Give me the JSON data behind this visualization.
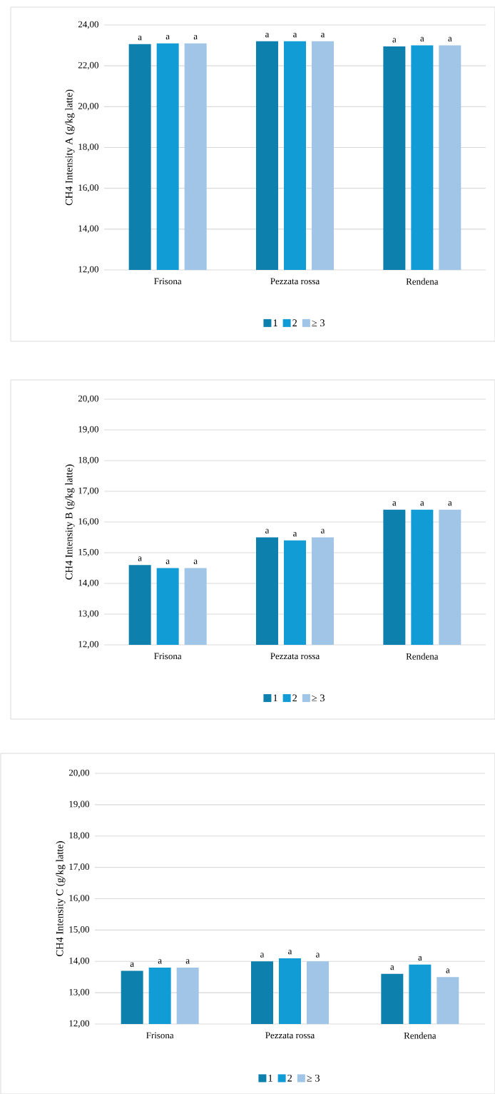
{
  "chart_data": [
    {
      "type": "bar",
      "ylabel": "CH4 Intensity A (g/kg latte)",
      "categories": [
        "Frisona",
        "Pezzata rossa",
        "Rendena"
      ],
      "series": [
        {
          "name": "1",
          "color": "#0e80ae",
          "values": [
            23.06,
            23.2,
            22.95
          ],
          "value_labels": [
            "a",
            "a",
            "a"
          ]
        },
        {
          "name": "2",
          "color": "#129cd6",
          "values": [
            23.1,
            23.2,
            23.0
          ],
          "value_labels": [
            "a",
            "a",
            "a"
          ]
        },
        {
          "name": "≥ 3",
          "color": "#a0c5e6",
          "values": [
            23.1,
            23.2,
            23.0
          ],
          "value_labels": [
            "a",
            "a",
            "a"
          ]
        }
      ],
      "ylim": [
        12,
        24
      ],
      "yticks": [
        {
          "value": 12,
          "label": "12,00"
        },
        {
          "value": 14,
          "label": "14,00"
        },
        {
          "value": 16,
          "label": "16,00"
        },
        {
          "value": 18,
          "label": "18,00"
        },
        {
          "value": 20,
          "label": "20,00"
        },
        {
          "value": 22,
          "label": "22,00"
        },
        {
          "value": 24,
          "label": "24,00"
        }
      ],
      "grid": "y",
      "legend": "bottom"
    },
    {
      "type": "bar",
      "ylabel": "CH4 Intensity B (g/kg latte)",
      "categories": [
        "Frisona",
        "Pezzata rossa",
        "Rendena"
      ],
      "series": [
        {
          "name": "1",
          "color": "#0e80ae",
          "values": [
            14.6,
            15.5,
            16.4
          ],
          "value_labels": [
            "a",
            "a",
            "a"
          ]
        },
        {
          "name": "2",
          "color": "#129cd6",
          "values": [
            14.5,
            15.4,
            16.4
          ],
          "value_labels": [
            "a",
            "a",
            "a"
          ]
        },
        {
          "name": "≥ 3",
          "color": "#a0c5e6",
          "values": [
            14.5,
            15.5,
            16.4
          ],
          "value_labels": [
            "a",
            "a",
            "a"
          ]
        }
      ],
      "ylim": [
        12,
        20
      ],
      "yticks": [
        {
          "value": 12,
          "label": "12,00"
        },
        {
          "value": 13,
          "label": "13,00"
        },
        {
          "value": 14,
          "label": "14,00"
        },
        {
          "value": 15,
          "label": "15,00"
        },
        {
          "value": 16,
          "label": "16,00"
        },
        {
          "value": 17,
          "label": "17,00"
        },
        {
          "value": 18,
          "label": "18,00"
        },
        {
          "value": 19,
          "label": "19,00"
        },
        {
          "value": 20,
          "label": "20,00"
        }
      ],
      "grid": "y",
      "legend": "bottom"
    },
    {
      "type": "bar",
      "ylabel": "CH4 Intensity C (g/kg latte)",
      "categories": [
        "Frisona",
        "Pezzata rossa",
        "Rendena"
      ],
      "series": [
        {
          "name": "1",
          "color": "#0e80ae",
          "values": [
            13.7,
            14.0,
            13.6
          ],
          "value_labels": [
            "a",
            "a",
            "a"
          ]
        },
        {
          "name": "2",
          "color": "#129cd6",
          "values": [
            13.8,
            14.1,
            13.9
          ],
          "value_labels": [
            "a",
            "a",
            "a"
          ]
        },
        {
          "name": "≥ 3",
          "color": "#a0c5e6",
          "values": [
            13.8,
            14.0,
            13.5
          ],
          "value_labels": [
            "a",
            "a",
            "a"
          ]
        }
      ],
      "ylim": [
        12,
        20
      ],
      "yticks": [
        {
          "value": 12,
          "label": "12,00"
        },
        {
          "value": 13,
          "label": "13,00"
        },
        {
          "value": 14,
          "label": "14,00"
        },
        {
          "value": 15,
          "label": "15,00"
        },
        {
          "value": 16,
          "label": "16,00"
        },
        {
          "value": 17,
          "label": "17,00"
        },
        {
          "value": 18,
          "label": "18,00"
        },
        {
          "value": 19,
          "label": "19,00"
        },
        {
          "value": 20,
          "label": "20,00"
        }
      ],
      "grid": "y",
      "legend": "bottom"
    }
  ]
}
